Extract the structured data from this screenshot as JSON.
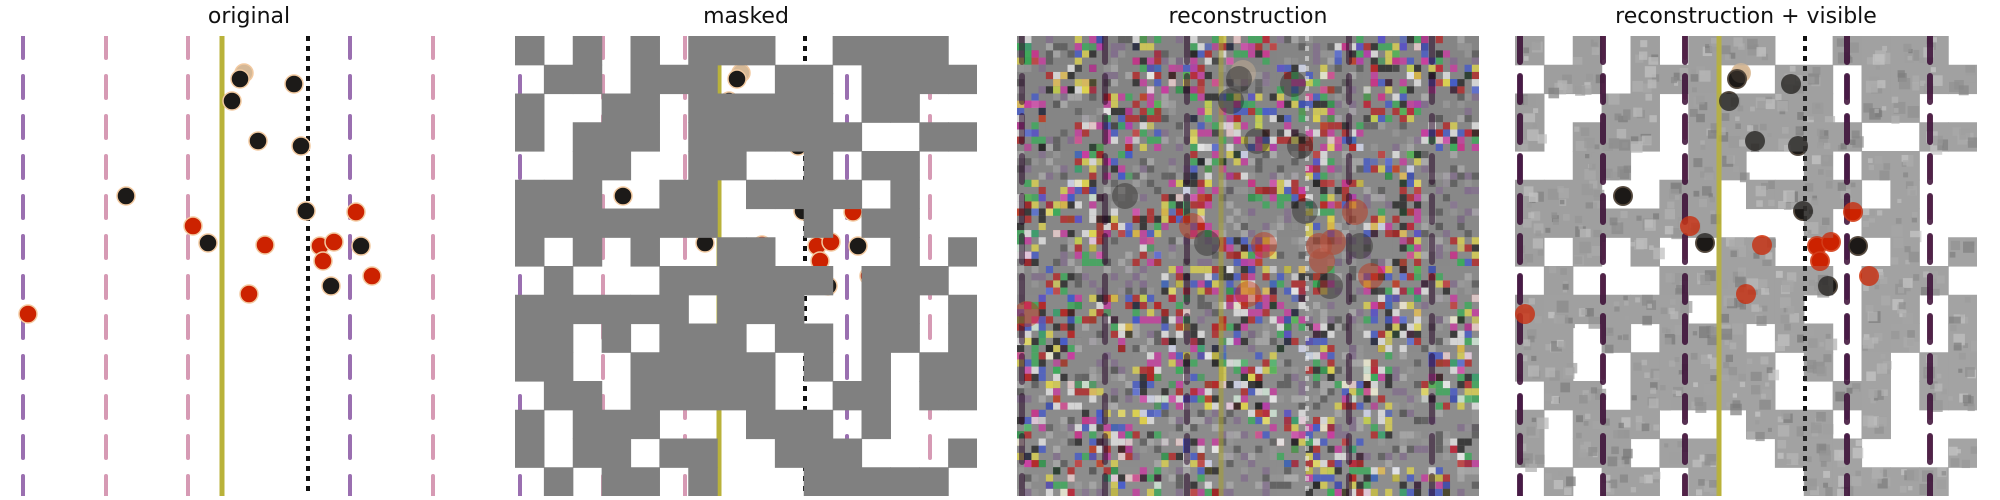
{
  "panels": [
    {
      "id": "original",
      "title": "original"
    },
    {
      "id": "masked",
      "title": "masked"
    },
    {
      "id": "reconstruction",
      "title": "reconstruction"
    },
    {
      "id": "reconstruction-visible",
      "title": "reconstruction + visible"
    }
  ],
  "colors": {
    "mask_gray": "#808080",
    "lane_dash_pink": "#d69ab4",
    "lane_dash_purple": "#9a6fb0",
    "solid_line_yellow": "#b9b23a",
    "dotted_line_black": "#111111",
    "dot_red": "#cc2200",
    "dot_black": "#1c1a18",
    "dot_tan": "#d5b896"
  }
}
